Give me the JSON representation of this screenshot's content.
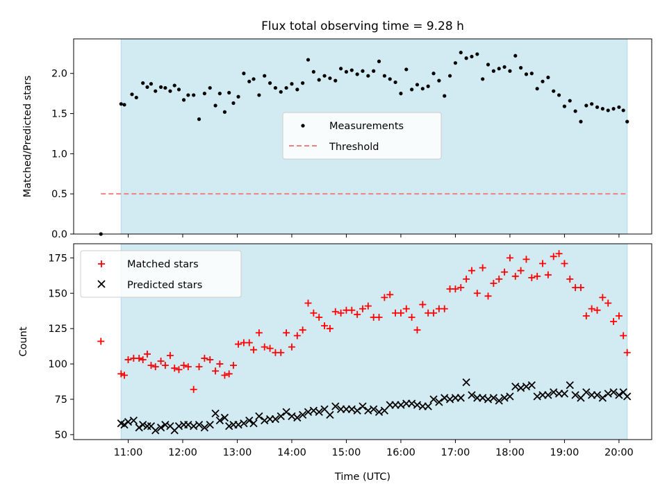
{
  "title": "Flux total observing time = 9.28 h",
  "x_ticks": [
    "11:00",
    "12:00",
    "13:00",
    "14:00",
    "15:00",
    "16:00",
    "17:00",
    "18:00",
    "19:00",
    "20:00"
  ],
  "x_tick_hours": [
    11,
    12,
    13,
    14,
    15,
    16,
    17,
    18,
    19,
    20
  ],
  "colors": {
    "shade": "#add8e6",
    "measurement": "#000000",
    "threshold": "#f08080",
    "matched": "#ff0000",
    "predicted": "#000000"
  },
  "chart_data": [
    {
      "type": "scatter",
      "xlabel": "",
      "ylabel": "Matched/Predicted stars",
      "xlim": [
        10.0,
        20.6
      ],
      "ylim": [
        0.0,
        2.43
      ],
      "yticks": [
        "0.0",
        "0.5",
        "1.0",
        "1.5",
        "2.0"
      ],
      "ytick_values": [
        0.0,
        0.5,
        1.0,
        1.5,
        2.0
      ],
      "legend_position": "center",
      "shaded_span": [
        10.87,
        20.15
      ],
      "threshold": {
        "name": "Threshold",
        "y": 0.5,
        "x": [
          10.5,
          20.15
        ]
      },
      "series": [
        {
          "name": "Measurements",
          "x": [
            10.5,
            10.87,
            10.93,
            11.07,
            11.15,
            11.27,
            11.35,
            11.42,
            11.5,
            11.6,
            11.68,
            11.77,
            11.85,
            11.93,
            12.02,
            12.1,
            12.2,
            12.3,
            12.4,
            12.5,
            12.6,
            12.68,
            12.77,
            12.85,
            12.93,
            13.02,
            13.12,
            13.22,
            13.3,
            13.4,
            13.5,
            13.6,
            13.7,
            13.8,
            13.9,
            14.0,
            14.1,
            14.2,
            14.3,
            14.4,
            14.5,
            14.6,
            14.7,
            14.8,
            14.9,
            15.0,
            15.1,
            15.2,
            15.3,
            15.4,
            15.5,
            15.6,
            15.7,
            15.8,
            15.9,
            16.0,
            16.1,
            16.2,
            16.3,
            16.4,
            16.5,
            16.6,
            16.7,
            16.8,
            16.9,
            17.0,
            17.1,
            17.2,
            17.3,
            17.4,
            17.5,
            17.6,
            17.7,
            17.8,
            17.9,
            18.0,
            18.1,
            18.2,
            18.3,
            18.4,
            18.5,
            18.6,
            18.7,
            18.8,
            18.9,
            19.0,
            19.1,
            19.2,
            19.3,
            19.4,
            19.5,
            19.6,
            19.7,
            19.8,
            19.9,
            20.0,
            20.08,
            20.15
          ],
          "y": [
            0.0,
            1.62,
            1.61,
            1.74,
            1.7,
            1.88,
            1.83,
            1.87,
            1.78,
            1.83,
            1.82,
            1.78,
            1.85,
            1.8,
            1.67,
            1.73,
            1.73,
            1.43,
            1.75,
            1.82,
            1.6,
            1.75,
            1.52,
            1.76,
            1.63,
            1.71,
            2.0,
            1.9,
            1.93,
            1.73,
            1.97,
            1.88,
            1.82,
            1.77,
            1.82,
            1.87,
            1.8,
            1.88,
            2.17,
            2.02,
            1.92,
            1.97,
            1.94,
            1.91,
            2.06,
            2.02,
            2.04,
            1.99,
            2.03,
            1.97,
            2.03,
            2.15,
            1.97,
            1.93,
            1.89,
            1.75,
            2.05,
            1.8,
            1.86,
            1.81,
            1.84,
            2.0,
            1.91,
            1.72,
            1.97,
            2.13,
            2.26,
            2.19,
            2.21,
            2.24,
            1.93,
            2.11,
            2.03,
            2.06,
            2.08,
            2.03,
            2.22,
            2.07,
            1.99,
            2.0,
            1.81,
            1.9,
            1.95,
            1.78,
            1.73,
            1.59,
            1.66,
            1.53,
            1.4,
            1.6,
            1.62,
            1.58,
            1.56,
            1.54,
            1.56,
            1.58,
            1.54,
            1.4
          ]
        }
      ]
    },
    {
      "type": "scatter",
      "xlabel": "Time (UTC)",
      "ylabel": "Count",
      "xlim": [
        10.0,
        20.6
      ],
      "ylim": [
        46.5,
        185.0
      ],
      "yticks": [
        "50",
        "75",
        "100",
        "125",
        "150",
        "175"
      ],
      "ytick_values": [
        50,
        75,
        100,
        125,
        150,
        175
      ],
      "legend_position": "upper left",
      "shaded_span": [
        10.87,
        20.15
      ],
      "series": [
        {
          "name": "Matched stars",
          "marker": "plus",
          "x": [
            10.5,
            10.87,
            10.93,
            11.0,
            11.1,
            11.2,
            11.27,
            11.35,
            11.42,
            11.5,
            11.6,
            11.68,
            11.77,
            11.85,
            11.93,
            12.02,
            12.1,
            12.2,
            12.3,
            12.4,
            12.5,
            12.6,
            12.68,
            12.77,
            12.85,
            12.93,
            13.02,
            13.12,
            13.22,
            13.3,
            13.4,
            13.5,
            13.6,
            13.7,
            13.8,
            13.9,
            14.0,
            14.1,
            14.2,
            14.3,
            14.4,
            14.5,
            14.6,
            14.7,
            14.8,
            14.9,
            15.0,
            15.1,
            15.2,
            15.3,
            15.4,
            15.5,
            15.6,
            15.7,
            15.8,
            15.9,
            16.0,
            16.1,
            16.2,
            16.3,
            16.4,
            16.5,
            16.6,
            16.7,
            16.8,
            16.9,
            17.0,
            17.1,
            17.2,
            17.3,
            17.4,
            17.5,
            17.6,
            17.7,
            17.8,
            17.9,
            18.0,
            18.1,
            18.2,
            18.3,
            18.4,
            18.5,
            18.6,
            18.7,
            18.8,
            18.9,
            19.0,
            19.1,
            19.2,
            19.3,
            19.4,
            19.5,
            19.6,
            19.7,
            19.8,
            19.9,
            20.0,
            20.08,
            20.15
          ],
          "y": [
            116,
            93,
            92,
            103,
            104,
            104,
            103,
            107,
            99,
            98,
            102,
            99,
            106,
            97,
            96,
            99,
            98,
            82,
            98,
            104,
            103,
            95,
            100,
            92,
            93,
            99,
            114,
            115,
            115,
            110,
            122,
            112,
            111,
            108,
            108,
            122,
            112,
            120,
            124,
            143,
            136,
            133,
            127,
            125,
            137,
            136,
            138,
            138,
            135,
            139,
            141,
            133,
            133,
            147,
            149,
            136,
            136,
            139,
            133,
            124,
            142,
            136,
            136,
            139,
            139,
            153,
            153,
            154,
            160,
            166,
            150,
            168,
            148,
            157,
            160,
            165,
            175,
            162,
            166,
            174,
            161,
            162,
            171,
            163,
            176,
            178,
            171,
            160,
            154,
            154,
            134,
            139,
            138,
            147,
            143,
            130,
            134,
            120,
            108
          ]
        },
        {
          "name": "Predicted stars",
          "marker": "cross",
          "x": [
            10.87,
            10.93,
            11.0,
            11.1,
            11.2,
            11.27,
            11.35,
            11.42,
            11.5,
            11.6,
            11.68,
            11.77,
            11.85,
            11.93,
            12.02,
            12.1,
            12.2,
            12.3,
            12.4,
            12.5,
            12.6,
            12.68,
            12.77,
            12.85,
            12.93,
            13.02,
            13.12,
            13.22,
            13.3,
            13.4,
            13.5,
            13.6,
            13.7,
            13.8,
            13.9,
            14.0,
            14.1,
            14.2,
            14.3,
            14.4,
            14.5,
            14.6,
            14.7,
            14.8,
            14.9,
            15.0,
            15.1,
            15.2,
            15.3,
            15.4,
            15.5,
            15.6,
            15.7,
            15.8,
            15.9,
            16.0,
            16.1,
            16.2,
            16.3,
            16.4,
            16.5,
            16.6,
            16.7,
            16.8,
            16.9,
            17.0,
            17.1,
            17.2,
            17.3,
            17.4,
            17.5,
            17.6,
            17.7,
            17.8,
            17.9,
            18.0,
            18.1,
            18.2,
            18.3,
            18.4,
            18.5,
            18.6,
            18.7,
            18.8,
            18.9,
            19.0,
            19.1,
            19.2,
            19.3,
            19.4,
            19.5,
            19.6,
            19.7,
            19.8,
            19.9,
            20.0,
            20.08,
            20.15
          ],
          "y": [
            58,
            57,
            59,
            60,
            55,
            57,
            56,
            56,
            53,
            55,
            57,
            56,
            53,
            56,
            57,
            57,
            56,
            57,
            55,
            57,
            65,
            60,
            62,
            56,
            57,
            57,
            58,
            60,
            58,
            63,
            60,
            61,
            61,
            63,
            66,
            63,
            62,
            64,
            66,
            67,
            66,
            68,
            64,
            70,
            68,
            68,
            68,
            67,
            70,
            67,
            68,
            66,
            67,
            71,
            71,
            71,
            72,
            72,
            71,
            70,
            70,
            75,
            73,
            76,
            75,
            76,
            76,
            87,
            78,
            76,
            76,
            75,
            76,
            74,
            76,
            77,
            84,
            83,
            84,
            85,
            77,
            78,
            78,
            80,
            79,
            79,
            85,
            78,
            76,
            80,
            78,
            78,
            76,
            79,
            80,
            78,
            80,
            77
          ]
        }
      ]
    }
  ]
}
